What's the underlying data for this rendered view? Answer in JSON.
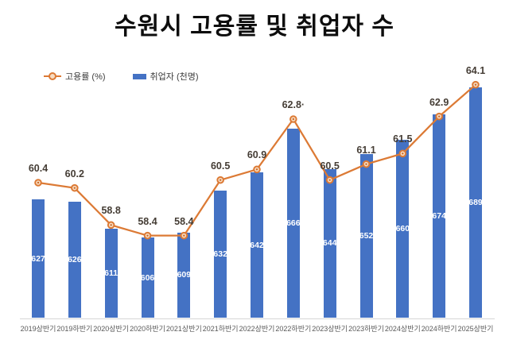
{
  "title": "수원시 고용률 및 취업자 수",
  "colors": {
    "bar": "#4472C4",
    "line": "#DC7A35",
    "marker_fill": "#F7DCC2",
    "marker_dot": "#C96A2B",
    "bar_label": "#ffffff",
    "line_label": "#453d35",
    "axis_line": "#d6d6d6",
    "axis_text": "#595959",
    "title_text": "#0d0d0d"
  },
  "chart_data": {
    "type": "bar",
    "subtype": "combo-bar-line",
    "title": "수원시 고용률 및 취업자 수",
    "xlabel": "",
    "ylabel": "",
    "grid": false,
    "y_axis_visible": false,
    "legend_position": "top-left",
    "categories": [
      "2019상반기",
      "2019하반기",
      "2020상반기",
      "2020하반기",
      "2021상반기",
      "2021하반기",
      "2022상반기",
      "2022하반기",
      "2023상반기",
      "2023하반기",
      "2024상반기",
      "2024하반기",
      "2025상반기"
    ],
    "series": [
      {
        "name": "고용률 (%)",
        "type": "line",
        "color": "#DC7A35",
        "values": [
          60.4,
          60.2,
          58.8,
          58.4,
          58.4,
          60.5,
          60.9,
          62.8,
          60.5,
          61.1,
          61.5,
          62.9,
          64.1
        ],
        "value_labels": [
          "60.4",
          "60.2",
          "58.8",
          "58.4",
          "58.4",
          "60.5",
          "60.9",
          "62.8·",
          "60.5",
          "61.1",
          "61.5",
          "62.9",
          "64.1"
        ],
        "ylim": [
          55.3,
          64.9
        ],
        "label_position": "above",
        "marker": "circle-ring"
      },
      {
        "name": "취업자 (천명)",
        "type": "bar",
        "color": "#4472C4",
        "values": [
          627,
          626,
          611,
          606,
          609,
          632,
          642,
          666,
          644,
          652,
          660,
          674,
          689
        ],
        "value_labels": [
          "627",
          "626",
          "611",
          "606",
          "609",
          "632",
          "642",
          "666",
          "644",
          "652",
          "660",
          "674",
          "689"
        ],
        "ylim": [
          562,
          702
        ],
        "label_position": "inside-center",
        "label_color": "#ffffff"
      }
    ]
  }
}
